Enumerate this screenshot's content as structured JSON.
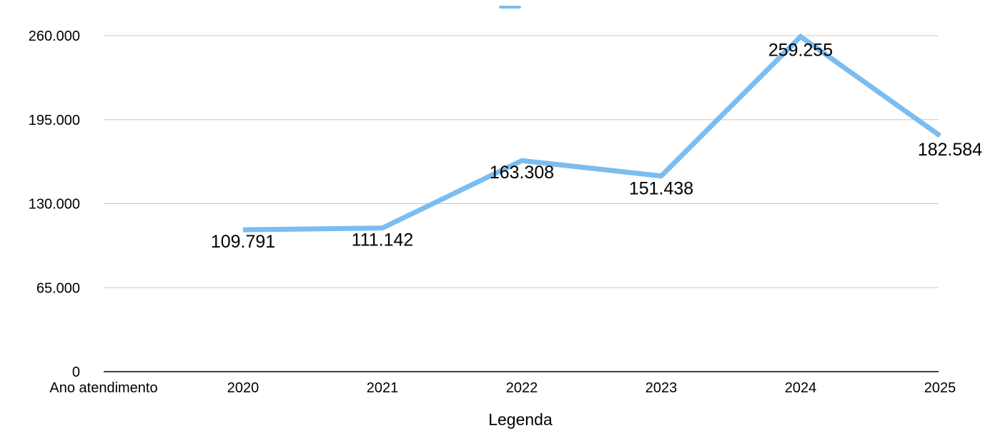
{
  "chart_data": {
    "type": "line",
    "title": "",
    "xlabel": "Legenda",
    "ylabel": "",
    "category_axis_label": "Ano atendimento",
    "categories": [
      "2020",
      "2021",
      "2022",
      "2023",
      "2024",
      "2025"
    ],
    "series": [
      {
        "values": [
          109791,
          111142,
          163308,
          151438,
          259255,
          182584
        ],
        "labels": [
          "109.791",
          "111.142",
          "163.308",
          "151.438",
          "259.255",
          "182.584"
        ],
        "color": "#7bbdf0"
      }
    ],
    "y_ticks": [
      {
        "value": 0,
        "label": "0"
      },
      {
        "value": 65000,
        "label": "65.000"
      },
      {
        "value": 130000,
        "label": "130.000"
      },
      {
        "value": 195000,
        "label": "195.000"
      },
      {
        "value": 260000,
        "label": "260.000"
      }
    ],
    "ylim": [
      0,
      260000
    ],
    "grid": true,
    "legend": "top-center"
  }
}
